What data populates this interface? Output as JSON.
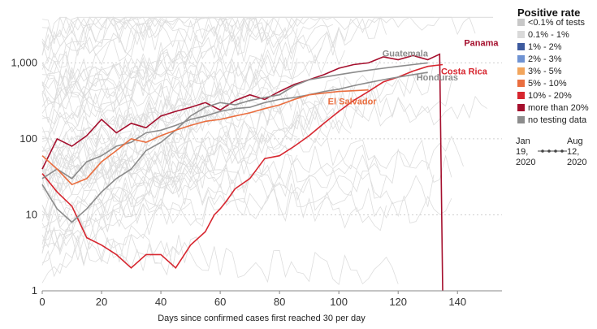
{
  "chart_data": {
    "type": "line",
    "title": "",
    "xlabel": "Days since confirmed cases first reached 30 per day",
    "ylabel": "",
    "y_scale": "log",
    "xlim": [
      0,
      155
    ],
    "ylim": [
      1,
      5000
    ],
    "x_ticks": [
      0,
      20,
      40,
      60,
      80,
      100,
      120,
      140
    ],
    "x_tick_labels": [
      "0",
      "20",
      "40",
      "60",
      "80",
      "100",
      "120",
      "140"
    ],
    "y_ticks": [
      1,
      10,
      100,
      1000
    ],
    "y_tick_labels": [
      "1",
      "10",
      "100",
      "1,000"
    ],
    "grid": "horizontal dotted",
    "legend": {
      "title": "Positive rate",
      "placement": "right",
      "entries": [
        {
          "label": "<0.1% of tests",
          "color": "#c8c8c8"
        },
        {
          "label": "0.1% - 1%",
          "color": "#d9d9d9"
        },
        {
          "label": "1% - 2%",
          "color": "#3d5a9e"
        },
        {
          "label": "2% - 3%",
          "color": "#6f93d3"
        },
        {
          "label": "3% - 5%",
          "color": "#f2a55c"
        },
        {
          "label": "5% - 10%",
          "color": "#ea6e3f"
        },
        {
          "label": "10% - 20%",
          "color": "#d7262f"
        },
        {
          "label": "more than 20%",
          "color": "#a50f2d"
        },
        {
          "label": "no testing data",
          "color": "#8c8c8c"
        }
      ]
    },
    "timeline": {
      "start_label": [
        "Jan",
        "19,",
        "2020"
      ],
      "end_label": [
        "Aug",
        "12,",
        "2020"
      ]
    },
    "background_series_color": "#dddddd",
    "series": [
      {
        "name": "Panama",
        "color": "#a50f2d",
        "x": [
          0,
          5,
          10,
          15,
          20,
          25,
          30,
          35,
          40,
          45,
          50,
          55,
          60,
          65,
          70,
          75,
          80,
          85,
          90,
          95,
          100,
          105,
          110,
          115,
          120,
          125,
          130,
          134,
          135
        ],
        "y": [
          40,
          100,
          80,
          110,
          180,
          120,
          160,
          140,
          200,
          230,
          260,
          300,
          240,
          320,
          380,
          330,
          420,
          520,
          600,
          700,
          850,
          950,
          1000,
          1200,
          1100,
          1250,
          1100,
          1300,
          1
        ]
      },
      {
        "name": "Costa Rica",
        "color": "#d7262f",
        "x": [
          0,
          5,
          10,
          15,
          20,
          25,
          30,
          35,
          40,
          45,
          50,
          55,
          58,
          60,
          62,
          65,
          70,
          75,
          80,
          85,
          90,
          95,
          100,
          105,
          110,
          115,
          120,
          125,
          130,
          135
        ],
        "y": [
          35,
          20,
          13,
          5,
          4,
          3,
          2,
          3,
          3,
          2,
          4,
          6,
          10,
          12,
          15,
          22,
          30,
          55,
          60,
          80,
          110,
          160,
          230,
          320,
          420,
          560,
          650,
          780,
          900,
          950
        ]
      },
      {
        "name": "Guatemala",
        "color": "#8c8c8c",
        "x": [
          0,
          5,
          10,
          15,
          20,
          25,
          30,
          35,
          40,
          45,
          50,
          55,
          60,
          65,
          70,
          75,
          80,
          85,
          90,
          95,
          100,
          105,
          110,
          115,
          120,
          125,
          130
        ],
        "y": [
          25,
          12,
          8,
          12,
          20,
          30,
          40,
          70,
          90,
          130,
          200,
          260,
          300,
          280,
          320,
          350,
          380,
          500,
          600,
          650,
          700,
          750,
          800,
          850,
          900,
          950,
          1000
        ]
      },
      {
        "name": "Honduras",
        "color": "#8c8c8c",
        "x": [
          0,
          5,
          10,
          15,
          20,
          25,
          30,
          35,
          40,
          45,
          50,
          55,
          60,
          65,
          70,
          75,
          80,
          85,
          90,
          95,
          100,
          105,
          110,
          115,
          120,
          125,
          130
        ],
        "y": [
          30,
          40,
          30,
          50,
          60,
          80,
          90,
          120,
          130,
          150,
          180,
          200,
          230,
          250,
          260,
          300,
          330,
          350,
          380,
          420,
          450,
          500,
          550,
          600,
          650,
          700,
          750
        ]
      },
      {
        "name": "El Salvador",
        "color": "#ea6e3f",
        "x": [
          0,
          5,
          10,
          15,
          20,
          25,
          30,
          35,
          40,
          45,
          50,
          55,
          60,
          65,
          70,
          75,
          80,
          85,
          90,
          95,
          100,
          105,
          110
        ],
        "y": [
          60,
          40,
          25,
          30,
          50,
          70,
          100,
          90,
          110,
          130,
          150,
          170,
          180,
          200,
          220,
          250,
          280,
          330,
          380,
          400,
          420,
          430,
          440
        ]
      }
    ]
  }
}
